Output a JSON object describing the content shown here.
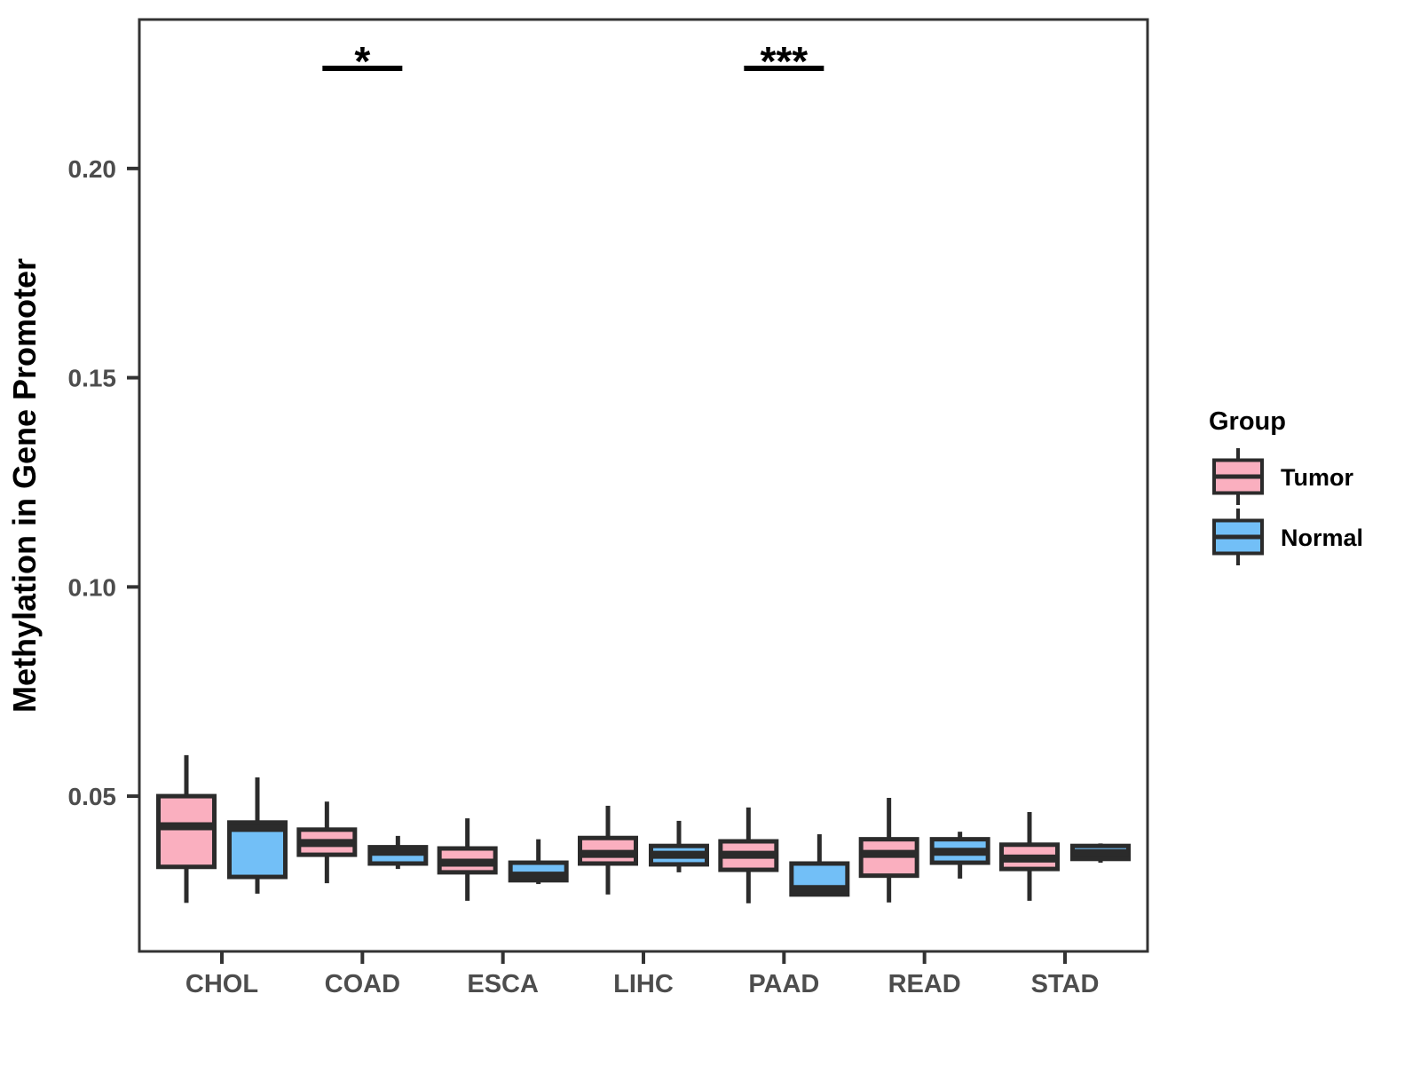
{
  "chart_data": {
    "type": "boxplot",
    "title": "",
    "xlabel": "",
    "ylabel": "Methylation in Gene Promoter",
    "legend_title": "Group",
    "legend_position": "right",
    "grid": "off",
    "categories": [
      "CHOL",
      "COAD",
      "ESCA",
      "LIHC",
      "PAAD",
      "READ",
      "STAD"
    ],
    "groups": [
      {
        "name": "Tumor",
        "color": "#FAAFBF"
      },
      {
        "name": "Normal",
        "color": "#72BFF7"
      }
    ],
    "ylim": [
      0.0129,
      0.2356
    ],
    "y_ticks": [
      {
        "value": 0.05,
        "label": "0.05"
      },
      {
        "value": 0.1,
        "label": "0.10"
      },
      {
        "value": 0.15,
        "label": "0.15"
      },
      {
        "value": 0.2,
        "label": "0.20"
      }
    ],
    "series": [
      {
        "name": "Tumor",
        "boxes": [
          {
            "category": "CHOL",
            "whisker_low": 0.0245,
            "q1": 0.0331,
            "median": 0.0428,
            "q3": 0.05,
            "whisker_high": 0.0598
          },
          {
            "category": "COAD",
            "whisker_low": 0.0292,
            "q1": 0.036,
            "median": 0.0388,
            "q3": 0.042,
            "whisker_high": 0.0487
          },
          {
            "category": "ESCA",
            "whisker_low": 0.025,
            "q1": 0.0318,
            "median": 0.0341,
            "q3": 0.0375,
            "whisker_high": 0.0447
          },
          {
            "category": "LIHC",
            "whisker_low": 0.0265,
            "q1": 0.0339,
            "median": 0.0362,
            "q3": 0.04,
            "whisker_high": 0.0477
          },
          {
            "category": "PAAD",
            "whisker_low": 0.0244,
            "q1": 0.0324,
            "median": 0.036,
            "q3": 0.0392,
            "whisker_high": 0.0473
          },
          {
            "category": "READ",
            "whisker_low": 0.0246,
            "q1": 0.031,
            "median": 0.0362,
            "q3": 0.0397,
            "whisker_high": 0.0496
          },
          {
            "category": "STAD",
            "whisker_low": 0.025,
            "q1": 0.0326,
            "median": 0.0351,
            "q3": 0.0384,
            "whisker_high": 0.0462
          }
        ]
      },
      {
        "name": "Normal",
        "boxes": [
          {
            "category": "CHOL",
            "whisker_low": 0.0267,
            "q1": 0.0307,
            "median": 0.0424,
            "q3": 0.0437,
            "whisker_high": 0.0545
          },
          {
            "category": "COAD",
            "whisker_low": 0.0326,
            "q1": 0.0339,
            "median": 0.0367,
            "q3": 0.0378,
            "whisker_high": 0.0405
          },
          {
            "category": "ESCA",
            "whisker_low": 0.029,
            "q1": 0.0299,
            "median": 0.031,
            "q3": 0.0341,
            "whisker_high": 0.0397
          },
          {
            "category": "LIHC",
            "whisker_low": 0.0318,
            "q1": 0.0337,
            "median": 0.036,
            "q3": 0.0381,
            "whisker_high": 0.0441
          },
          {
            "category": "PAAD",
            "whisker_low": 0.0261,
            "q1": 0.0265,
            "median": 0.0278,
            "q3": 0.0339,
            "whisker_high": 0.0409
          },
          {
            "category": "READ",
            "whisker_low": 0.0303,
            "q1": 0.0341,
            "median": 0.0367,
            "q3": 0.0397,
            "whisker_high": 0.0415
          },
          {
            "category": "STAD",
            "whisker_low": 0.0341,
            "q1": 0.035,
            "median": 0.0364,
            "q3": 0.0381,
            "whisker_high": 0.0387
          }
        ]
      }
    ],
    "significance": [
      {
        "category": "COAD",
        "label": "*"
      },
      {
        "category": "PAAD",
        "label": "***"
      }
    ],
    "colors": {
      "box_outline": "#2B2B2B",
      "axis_line": "#333333",
      "axis_text": "#4D4D4D",
      "title_text": "#000000",
      "significance": "#000000",
      "panel_background": "#FFFFFF"
    }
  }
}
